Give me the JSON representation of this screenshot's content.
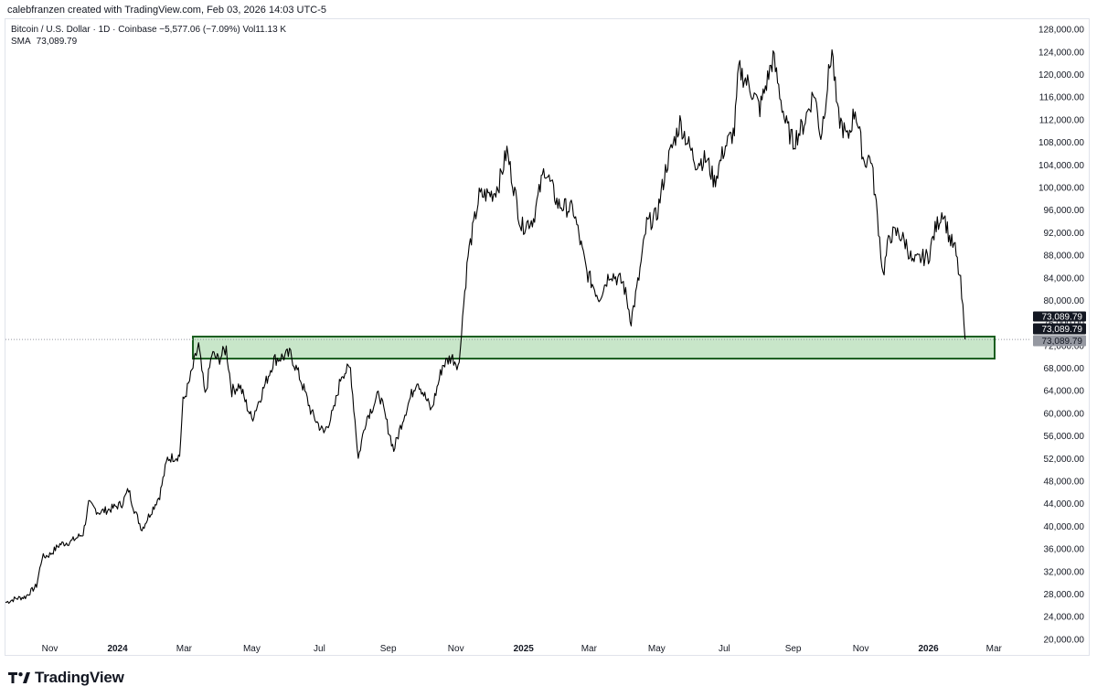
{
  "header": {
    "attribution": "calebfranzen created with TradingView.com, Feb 03, 2026 14:03 UTC-5",
    "symbol_line": "Bitcoin / U.S. Dollar · 1D · Coinbase  −5,577.06 (−7.09%)  Vol11.13 K",
    "sma_label": "SMA",
    "sma_value": "73,089.79"
  },
  "footer": {
    "brand_name": "TradingView",
    "brand_icon": "tradingview-logo-icon"
  },
  "chart_data": {
    "type": "line",
    "title": "Bitcoin / U.S. Dollar · 1D · Coinbase",
    "xlabel": "",
    "ylabel": "",
    "x_tick_labels": [
      "Nov",
      "2024",
      "Mar",
      "May",
      "Jul",
      "Sep",
      "Nov",
      "2025",
      "Mar",
      "May",
      "Jul",
      "Sep",
      "Nov",
      "2026",
      "Mar"
    ],
    "x_tick_dates": [
      "2023-11-01",
      "2024-01-01",
      "2024-03-01",
      "2024-05-01",
      "2024-07-01",
      "2024-09-01",
      "2024-11-01",
      "2025-01-01",
      "2025-03-01",
      "2025-05-01",
      "2025-07-01",
      "2025-09-01",
      "2025-11-01",
      "2026-01-01",
      "2026-03-01"
    ],
    "y_tick_labels": [
      "20,000.00",
      "24,000.00",
      "28,000.00",
      "32,000.00",
      "36,000.00",
      "40,000.00",
      "44,000.00",
      "48,000.00",
      "52,000.00",
      "56,000.00",
      "60,000.00",
      "64,000.00",
      "68,000.00",
      "72,000.00",
      "76,000.00",
      "80,000.00",
      "84,000.00",
      "88,000.00",
      "92,000.00",
      "96,000.00",
      "100,000.00",
      "104,000.00",
      "108,000.00",
      "112,000.00",
      "116,000.00",
      "120,000.00",
      "124,000.00",
      "128,000.00"
    ],
    "ylim": [
      19000,
      129000
    ],
    "xlim": [
      "2023-09-22",
      "2026-03-28"
    ],
    "grid": false,
    "series": [
      {
        "x": [
          "2023-09-22",
          "2023-10-01",
          "2023-10-10",
          "2023-10-20",
          "2023-10-25",
          "2023-11-01",
          "2023-11-10",
          "2023-11-20",
          "2023-12-01",
          "2023-12-06",
          "2023-12-15",
          "2023-12-25",
          "2024-01-05",
          "2024-01-11",
          "2024-01-16",
          "2024-01-23",
          "2024-01-31",
          "2024-02-08",
          "2024-02-15",
          "2024-02-26",
          "2024-02-29",
          "2024-03-05",
          "2024-03-14",
          "2024-03-20",
          "2024-03-26",
          "2024-04-01",
          "2024-04-08",
          "2024-04-13",
          "2024-04-20",
          "2024-05-01",
          "2024-05-10",
          "2024-05-21",
          "2024-06-05",
          "2024-06-15",
          "2024-06-24",
          "2024-07-05",
          "2024-07-14",
          "2024-07-21",
          "2024-07-29",
          "2024-08-05",
          "2024-08-12",
          "2024-08-24",
          "2024-09-06",
          "2024-09-15",
          "2024-09-27",
          "2024-10-10",
          "2024-10-20",
          "2024-10-28",
          "2024-11-04",
          "2024-11-06",
          "2024-11-12",
          "2024-11-22",
          "2024-12-05",
          "2024-12-10",
          "2024-12-17",
          "2024-12-30",
          "2025-01-10",
          "2025-01-20",
          "2025-02-01",
          "2025-02-15",
          "2025-02-27",
          "2025-03-10",
          "2025-03-20",
          "2025-04-01",
          "2025-04-08",
          "2025-04-15",
          "2025-04-22",
          "2025-05-01",
          "2025-05-10",
          "2025-05-22",
          "2025-06-05",
          "2025-06-15",
          "2025-06-22",
          "2025-07-01",
          "2025-07-10",
          "2025-07-14",
          "2025-07-25",
          "2025-08-02",
          "2025-08-14",
          "2025-08-25",
          "2025-09-01",
          "2025-09-10",
          "2025-09-20",
          "2025-09-26",
          "2025-10-06",
          "2025-10-11",
          "2025-10-20",
          "2025-10-27",
          "2025-11-04",
          "2025-11-10",
          "2025-11-17",
          "2025-11-21",
          "2025-11-27",
          "2025-12-05",
          "2025-12-12",
          "2025-12-18",
          "2025-12-25",
          "2026-01-01",
          "2026-01-07",
          "2026-01-14",
          "2026-01-20",
          "2026-01-25",
          "2026-01-30",
          "2026-02-03"
        ],
        "y": [
          26500,
          27200,
          27500,
          29500,
          34500,
          35000,
          36800,
          37300,
          38700,
          44000,
          42500,
          43000,
          44000,
          46500,
          43000,
          39500,
          42500,
          45500,
          52000,
          52500,
          62000,
          65000,
          72000,
          63000,
          70500,
          69500,
          71500,
          64000,
          65000,
          59000,
          63500,
          69500,
          70500,
          65500,
          60000,
          56500,
          60500,
          67000,
          68000,
          52000,
          59000,
          63500,
          53500,
          59500,
          66000,
          60500,
          68500,
          70000,
          68500,
          75000,
          88000,
          98500,
          99000,
          100800,
          106500,
          93000,
          94500,
          103500,
          97000,
          96000,
          85000,
          80500,
          85000,
          83000,
          76500,
          84000,
          93500,
          95000,
          104000,
          111500,
          104500,
          105000,
          101000,
          107000,
          110000,
          121000,
          117500,
          114000,
          123000,
          111500,
          108000,
          111000,
          117000,
          109000,
          124500,
          113000,
          108500,
          114000,
          104500,
          105500,
          93000,
          84500,
          91500,
          92000,
          90000,
          86500,
          87500,
          87800,
          92500,
          96000,
          91000,
          89000,
          83000,
          73089.79
        ]
      }
    ],
    "current_price": 73089.79,
    "current_price_label": "73,089.79",
    "sma_price_label": "73,089.79",
    "obscured_price_label": "73,089.79",
    "support_zone": {
      "y_low": 69700,
      "y_high": 73600,
      "fill": "#c8e6c9",
      "stroke": "#1b5e20"
    },
    "colors": {
      "line": "#000000",
      "price_label_bg": "#131722",
      "sma_label_bg": "#9598a1",
      "axis_text": "#131722",
      "dotted_line": "#9598a1"
    }
  }
}
